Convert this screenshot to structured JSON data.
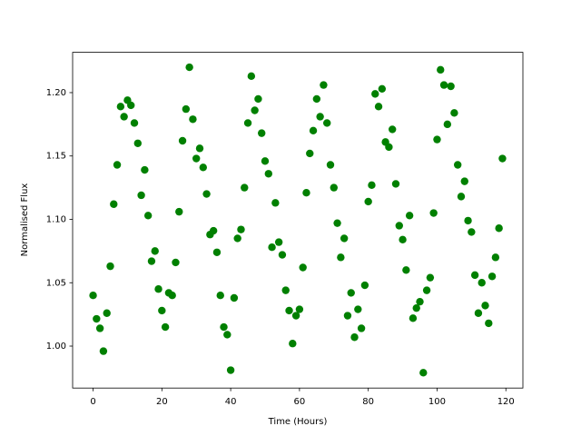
{
  "chart_data": {
    "type": "scatter",
    "x_label": "Time (Hours)",
    "y_label": "Normalised Flux",
    "x": [
      0,
      1,
      2,
      3,
      4,
      5,
      6,
      7,
      8,
      9,
      10,
      11,
      12,
      13,
      14,
      15,
      16,
      17,
      18,
      19,
      20,
      21,
      22,
      23,
      24,
      25,
      26,
      27,
      28,
      29,
      30,
      31,
      32,
      33,
      34,
      35,
      36,
      37,
      38,
      39,
      40,
      41,
      42,
      43,
      44,
      45,
      46,
      47,
      48,
      49,
      50,
      51,
      52,
      53,
      54,
      55,
      56,
      57,
      58,
      59,
      60,
      61,
      62,
      63,
      64,
      65,
      66,
      67,
      68,
      69,
      70,
      71,
      72,
      73,
      74,
      75,
      76,
      77,
      78,
      79,
      80,
      81,
      82,
      83,
      84,
      85,
      86,
      87,
      88,
      89,
      90,
      91,
      92,
      93,
      94,
      95,
      96,
      97,
      98,
      99,
      100,
      101,
      102,
      103,
      104,
      105,
      106,
      107,
      108,
      109,
      110,
      111,
      112,
      113,
      114,
      115,
      116,
      117,
      118,
      119
    ],
    "series": [
      {
        "color": "#008000",
        "values": [
          1.04,
          1.0215,
          1.014,
          0.996,
          1.026,
          1.063,
          1.112,
          1.143,
          1.189,
          1.181,
          1.194,
          1.19,
          1.176,
          1.16,
          1.119,
          1.139,
          1.103,
          1.067,
          1.075,
          1.045,
          1.028,
          1.015,
          1.042,
          1.04,
          1.066,
          1.106,
          1.162,
          1.187,
          1.22,
          1.179,
          1.148,
          1.156,
          1.141,
          1.12,
          1.088,
          1.091,
          1.074,
          1.04,
          1.015,
          1.009,
          0.981,
          1.038,
          1.085,
          1.092,
          1.125,
          1.176,
          1.213,
          1.186,
          1.195,
          1.168,
          1.146,
          1.136,
          1.078,
          1.113,
          1.082,
          1.072,
          1.044,
          1.028,
          1.002,
          1.024,
          1.029,
          1.062,
          1.121,
          1.152,
          1.17,
          1.195,
          1.181,
          1.206,
          1.176,
          1.143,
          1.125,
          1.097,
          1.07,
          1.085,
          1.024,
          1.042,
          1.007,
          1.029,
          1.014,
          1.048,
          1.114,
          1.127,
          1.199,
          1.189,
          1.203,
          1.161,
          1.157,
          1.171,
          1.128,
          1.095,
          1.084,
          1.06,
          1.103,
          1.022,
          1.03,
          1.035,
          0.979,
          1.044,
          1.054,
          1.105,
          1.163,
          1.218,
          1.206,
          1.175,
          1.205,
          1.184,
          1.143,
          1.118,
          1.13,
          1.099,
          1.09,
          1.056,
          1.026,
          1.05,
          1.032,
          1.018,
          1.055,
          1.07,
          1.093,
          1.148
        ]
      }
    ],
    "xlim": [
      -5.95,
      124.95
    ],
    "ylim": [
      0.9669,
      1.2318
    ],
    "xticks": [
      0,
      20,
      40,
      60,
      80,
      100,
      120
    ],
    "yticks": [
      {
        "value": 1.0,
        "label": "1.00"
      },
      {
        "value": 1.05,
        "label": "1.05"
      },
      {
        "value": 1.1,
        "label": "1.10"
      },
      {
        "value": 1.15,
        "label": "1.15"
      },
      {
        "value": 1.2,
        "label": "1.20"
      }
    ]
  }
}
